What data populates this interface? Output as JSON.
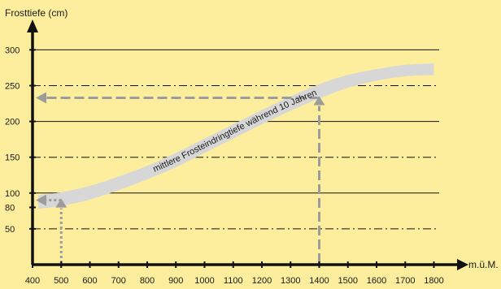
{
  "chart_data": {
    "type": "area",
    "title": "",
    "ylabel": "Frosttiefe (cm)",
    "xlabel": "m.ü.M.",
    "xlim": [
      400,
      1800
    ],
    "ylim": [
      0,
      330
    ],
    "x_ticks": [
      400,
      500,
      600,
      700,
      800,
      900,
      1000,
      1100,
      1200,
      1300,
      1400,
      1500,
      1600,
      1700,
      1800
    ],
    "y_ticks": [
      50,
      80,
      100,
      150,
      200,
      250,
      300
    ],
    "gridlines": [
      {
        "y": 50,
        "style": "dashdot"
      },
      {
        "y": 100,
        "style": "solid"
      },
      {
        "y": 150,
        "style": "dashdot"
      },
      {
        "y": 200,
        "style": "solid"
      },
      {
        "y": 250,
        "style": "dashdot"
      },
      {
        "y": 300,
        "style": "solid"
      }
    ],
    "band": {
      "label": "mittlere Frosteindringtiefe während 10 Jahren",
      "x": [
        420,
        500,
        600,
        700,
        800,
        900,
        1000,
        1100,
        1200,
        1300,
        1400,
        1500,
        1600,
        1700,
        1800
      ],
      "lower": [
        78,
        82,
        91,
        104,
        119,
        136,
        156,
        176,
        196,
        215,
        232,
        247,
        257,
        263,
        265
      ],
      "upper": [
        97,
        101,
        110,
        123,
        138,
        156,
        176,
        196,
        216,
        235,
        252,
        265,
        273,
        279,
        281
      ]
    },
    "annotations": [
      {
        "name": "reading-500",
        "x": 500,
        "y": 90,
        "y_start": 0
      },
      {
        "name": "reading-1400",
        "x": 1400,
        "y": 233,
        "y_start": 0
      }
    ],
    "colors": {
      "background": "#fcee9c",
      "band": "#d7d7d7",
      "arrow": "#9c9c9c",
      "axis": "#111111"
    }
  }
}
